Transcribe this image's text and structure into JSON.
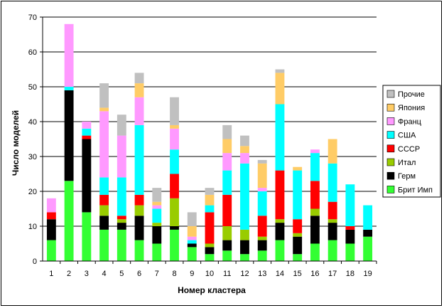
{
  "chart_data": {
    "type": "bar",
    "stacked": true,
    "xlabel": "Номер кластера",
    "ylabel": "Число моделей",
    "ylim": [
      0,
      70
    ],
    "yticks": [
      0,
      10,
      20,
      30,
      40,
      50,
      60,
      70
    ],
    "grid": true,
    "legend_position": "right",
    "categories": [
      "1",
      "2",
      "3",
      "4",
      "5",
      "6",
      "7",
      "8",
      "9",
      "10",
      "11",
      "12",
      "13",
      "14",
      "15",
      "16",
      "17",
      "18",
      "19"
    ],
    "series": [
      {
        "name": "Брит Имп",
        "color": "#33FF33",
        "values": [
          6,
          23,
          14,
          9,
          9,
          6,
          5,
          9,
          4,
          2,
          3,
          2,
          3,
          6,
          2,
          5,
          6,
          5,
          7
        ]
      },
      {
        "name": "Герм",
        "color": "#000000",
        "values": [
          6,
          26,
          21,
          4,
          2,
          7,
          5,
          1,
          1,
          2,
          3,
          4,
          3,
          5,
          5,
          8,
          5,
          4,
          2
        ]
      },
      {
        "name": "Итал",
        "color": "#99CC00",
        "values": [
          0,
          0,
          0,
          3,
          1,
          3,
          1,
          8,
          0,
          1,
          4,
          3,
          1,
          1,
          1,
          2,
          1,
          0,
          0
        ]
      },
      {
        "name": "СССР",
        "color": "#FF0000",
        "values": [
          2,
          0,
          1,
          3,
          1,
          3,
          0,
          7,
          0,
          9,
          9,
          0,
          6,
          14,
          4,
          8,
          5,
          1,
          0
        ]
      },
      {
        "name": "США",
        "color": "#00FFFF",
        "values": [
          0,
          1,
          2,
          5,
          11,
          20,
          4,
          7,
          1,
          2,
          7,
          19,
          7,
          19,
          14,
          8,
          11,
          12,
          7
        ]
      },
      {
        "name": "Франц",
        "color": "#FF99FF",
        "values": [
          4,
          18,
          2,
          19,
          12,
          8,
          1,
          6,
          1,
          0,
          5,
          3,
          1,
          0,
          0,
          1,
          0,
          0,
          0
        ]
      },
      {
        "name": "Япония",
        "color": "#FFCC66",
        "values": [
          0,
          0,
          0,
          1,
          0,
          4,
          1,
          1,
          3,
          3,
          4,
          2,
          7,
          9,
          1,
          0,
          7,
          0,
          0
        ]
      },
      {
        "name": "Прочие",
        "color": "#C0C0C0",
        "values": [
          0,
          0,
          0,
          7,
          6,
          3,
          4,
          8,
          4,
          2,
          4,
          3,
          1,
          1,
          0,
          0,
          0,
          0,
          0
        ]
      }
    ],
    "legend_order": [
      "Прочие",
      "Япония",
      "Франц",
      "США",
      "СССР",
      "Итал",
      "Герм",
      "Брит Имп"
    ]
  }
}
